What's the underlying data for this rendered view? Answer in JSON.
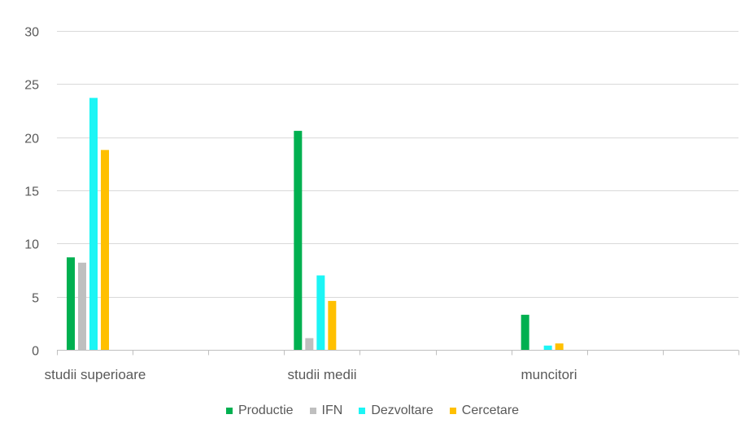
{
  "chart_data": {
    "type": "bar",
    "categories": [
      "studii superioare",
      "studii medii",
      "muncitori"
    ],
    "series": [
      {
        "name": "Productie",
        "color": "#00B050",
        "values": [
          8.7,
          20.6,
          3.3
        ]
      },
      {
        "name": "IFN",
        "color": "#BFBFBF",
        "values": [
          8.2,
          1.1,
          0
        ]
      },
      {
        "name": "Dezvoltare",
        "color": "#1CF5F5",
        "values": [
          23.7,
          7.0,
          0.4
        ]
      },
      {
        "name": "Cercetare",
        "color": "#FFC000",
        "values": [
          18.8,
          4.6,
          0.6
        ]
      }
    ],
    "yticks": [
      0,
      5,
      10,
      15,
      20,
      25,
      30
    ],
    "ylim": [
      0,
      30
    ],
    "grid": true,
    "legend_position": "bottom"
  }
}
